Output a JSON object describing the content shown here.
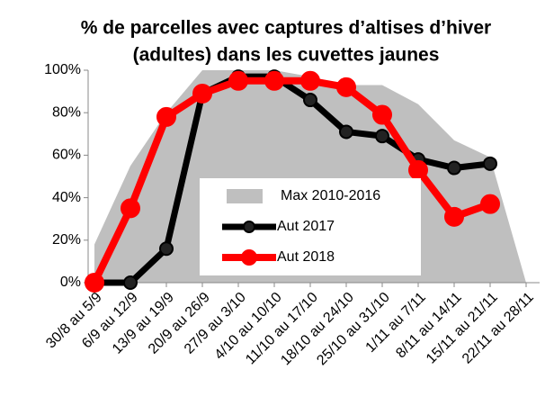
{
  "chart_data": {
    "type": "line",
    "title": [
      "% de parcelles avec captures d’altises d’hiver",
      "(adultes) dans les cuvettes jaunes"
    ],
    "categories": [
      "30/8 au 5/9",
      "6/9 au 12/9",
      "13/9 au 19/9",
      "20/9 au 26/9",
      "27/9 au 3/10",
      "4/10 au 10/10",
      "11/10 au 17/10",
      "18/10 au 24/10",
      "25/10 au 31/10",
      "1/11 au 7/11",
      "8/11 au 14/11",
      "15/11 au 21/11",
      "22/11 au 28/11"
    ],
    "series": [
      {
        "name": "Max 2010-2016",
        "color": "#bfbfbf",
        "kind": "area",
        "values": [
          18,
          55,
          80,
          100,
          100,
          100,
          97,
          93,
          93,
          84,
          67,
          59,
          0
        ]
      },
      {
        "name": "Aut 2017",
        "color": "#000000",
        "kind": "line",
        "values": [
          0,
          0,
          16,
          89,
          97,
          97,
          86,
          71,
          69,
          58,
          54,
          56,
          null
        ]
      },
      {
        "name": "Aut 2018",
        "color": "#ff0000",
        "kind": "line",
        "values": [
          0,
          35,
          78,
          89,
          95,
          95,
          95,
          92,
          79,
          53,
          31,
          37,
          null
        ]
      }
    ],
    "ylim": [
      0,
      100
    ],
    "yticks": [
      {
        "value": 0,
        "label": "0%"
      },
      {
        "value": 20,
        "label": "20%"
      },
      {
        "value": 40,
        "label": "40%"
      },
      {
        "value": 60,
        "label": "60%"
      },
      {
        "value": 80,
        "label": "80%"
      },
      {
        "value": 100,
        "label": "100%"
      }
    ],
    "legend": "center"
  }
}
